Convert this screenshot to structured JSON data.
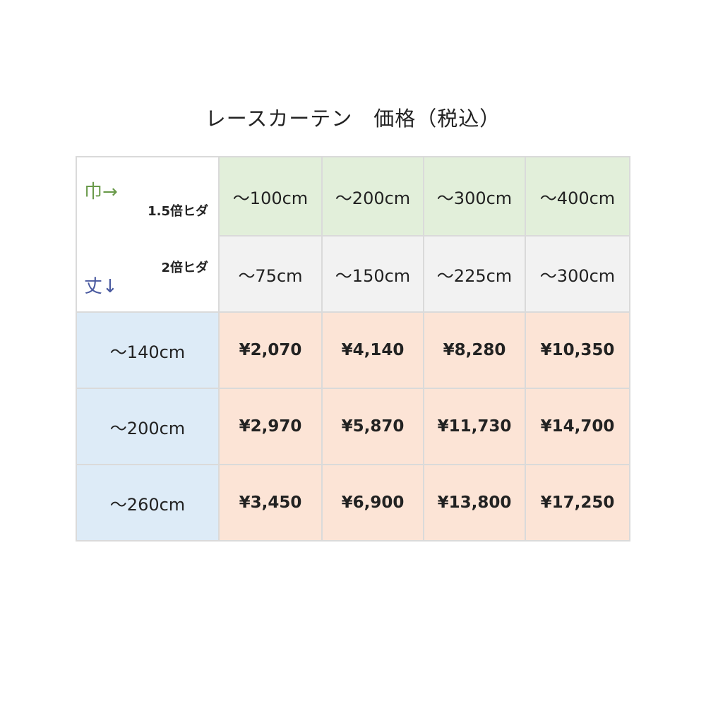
{
  "title": "レースカーテン　価格（税込）",
  "corner": {
    "width_label": "巾→",
    "length_label": "丈↓",
    "pleat_15": "1.5倍ヒダ",
    "pleat_2": "2倍ヒダ"
  },
  "width_15x": [
    "～100cm",
    "～200cm",
    "～300cm",
    "～400cm"
  ],
  "width_2x": [
    "～75cm",
    "～150cm",
    "～225cm",
    "～300cm"
  ],
  "rows": [
    {
      "length": "～140cm",
      "prices": [
        "¥2,070",
        "¥4,140",
        "¥8,280",
        "¥10,350"
      ]
    },
    {
      "length": "～200cm",
      "prices": [
        "¥2,970",
        "¥5,870",
        "¥11,730",
        "¥14,700"
      ]
    },
    {
      "length": "～260cm",
      "prices": [
        "¥3,450",
        "¥6,900",
        "¥13,800",
        "¥17,250"
      ]
    }
  ],
  "colors": {
    "header_15x": "#e2efda",
    "header_2x": "#f2f2f2",
    "length_col": "#ddebf7",
    "price_cell": "#fce4d6",
    "width_label": "#6a9a4a",
    "length_label": "#4a5aa0"
  }
}
